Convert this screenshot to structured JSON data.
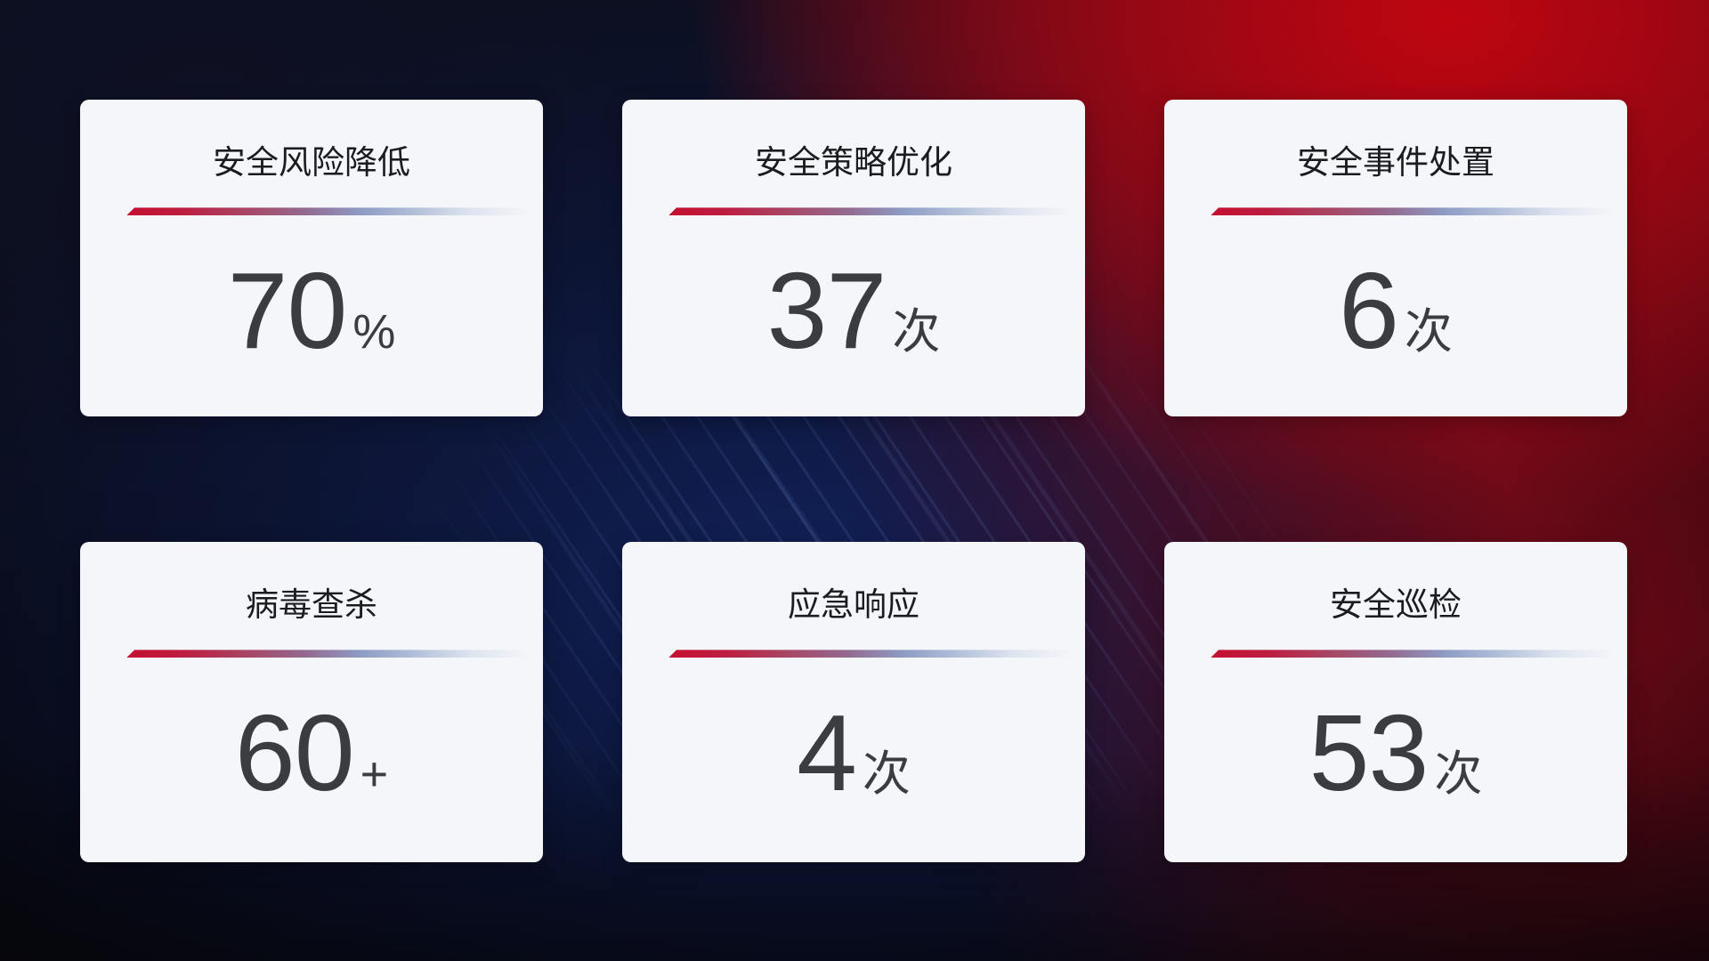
{
  "cards": [
    {
      "title": "安全风险降低",
      "value": "70",
      "suffix": "%"
    },
    {
      "title": "安全策略优化",
      "value": "37",
      "suffix": "次"
    },
    {
      "title": "安全事件处置",
      "value": "6",
      "suffix": "次"
    },
    {
      "title": "病毒查杀",
      "value": "60",
      "suffix": "+"
    },
    {
      "title": "应急响应",
      "value": "4",
      "suffix": "次"
    },
    {
      "title": "安全巡检",
      "value": "53",
      "suffix": "次"
    }
  ],
  "colors": {
    "card_background": "#f5f6fa",
    "title_text": "#1b1c21",
    "value_text": "#3b3c41",
    "divider_red": "#c50f31",
    "divider_blue": "#8e9bc4",
    "bg_dark_navy": "#0b0e1d",
    "bg_blue_glow": "#12235f",
    "bg_bright_red": "#c10510"
  }
}
